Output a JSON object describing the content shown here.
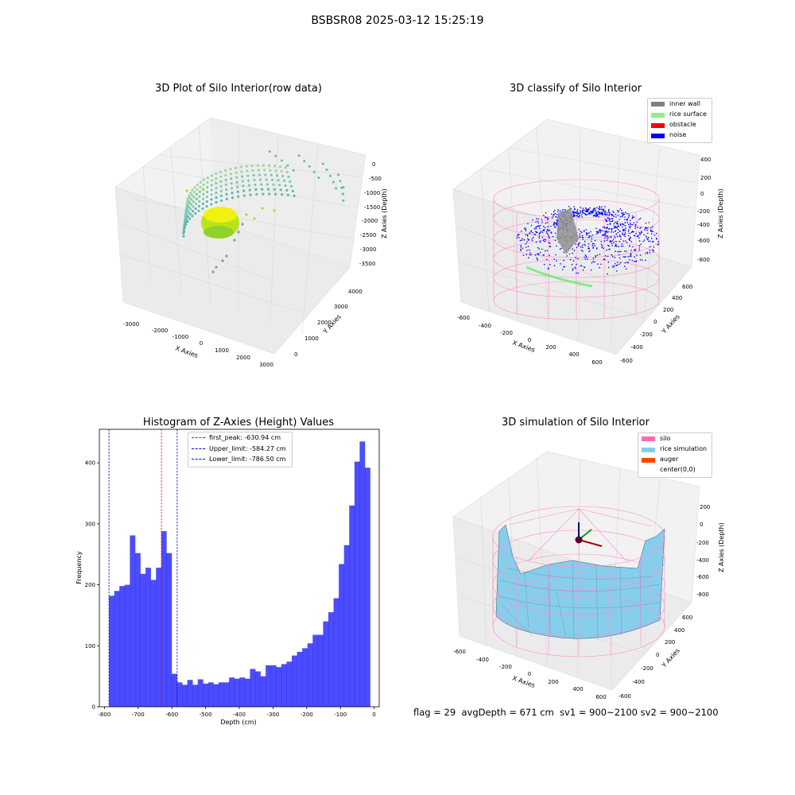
{
  "figure_title": "BSBSR08 2025-03-12 15:25:19",
  "panels": {
    "raw": {
      "title": "3D Plot of Silo Interior(row data)",
      "xlabel": "X Axies",
      "ylabel": "Y Axies",
      "zlabel": "Z Axies (Depth)",
      "xticks": [
        "-3000",
        "-2000",
        "-1000",
        "0",
        "1000",
        "2000",
        "3000"
      ],
      "yticks": [
        "0",
        "1000",
        "2000",
        "3000",
        "4000"
      ],
      "zticks": [
        "0",
        "-500",
        "-1000",
        "-1500",
        "-2000",
        "-2500",
        "-3000",
        "-3500"
      ]
    },
    "classify": {
      "title": "3D classify of Silo Interior",
      "xlabel": "X Axies",
      "ylabel": "Y Axies",
      "zlabel": "Z Axies (Depth)",
      "xticks": [
        "-600",
        "-400",
        "-200",
        "0",
        "200",
        "400",
        "600"
      ],
      "yticks": [
        "-600",
        "-400",
        "-200",
        "0",
        "200",
        "400",
        "600"
      ],
      "zticks": [
        "400",
        "200",
        "0",
        "-200",
        "-400",
        "-600",
        "-800"
      ],
      "legend": [
        {
          "label": "inner wall",
          "color": "#808080"
        },
        {
          "label": "rice surface",
          "color": "#90ee90"
        },
        {
          "label": "obstacle",
          "color": "#ff0000"
        },
        {
          "label": "noise",
          "color": "#0000ff"
        }
      ]
    },
    "simulation": {
      "title": "3D simulation of Silo Interior",
      "xlabel": "X Axies",
      "ylabel": "Y Axies",
      "zlabel": "Z Axies (Depth)",
      "xticks": [
        "-600",
        "-400",
        "-200",
        "0",
        "200",
        "400",
        "600"
      ],
      "yticks": [
        "-600",
        "-400",
        "-200",
        "0",
        "200",
        "400",
        "600"
      ],
      "zticks": [
        "200",
        "0",
        "-200",
        "-400",
        "-600",
        "-800"
      ],
      "legend": [
        {
          "label": "silo",
          "color": "#ff69b4"
        },
        {
          "label": "rice simulation",
          "color": "#87ceeb"
        },
        {
          "label": "auger",
          "color": "#ff4500"
        },
        {
          "label": "center(0,0)",
          "color": ""
        }
      ]
    }
  },
  "chart_data": {
    "type": "bar",
    "title": "Histogram of Z-Axies (Height) Values",
    "xlabel": "Depth (cm)",
    "ylabel": "Frequency",
    "xlim": [
      -815,
      15
    ],
    "ylim": [
      0,
      455
    ],
    "xticks": [
      -800,
      -700,
      -600,
      -500,
      -400,
      -300,
      -200,
      -100,
      0
    ],
    "yticks": [
      0,
      100,
      200,
      300,
      400
    ],
    "bin_range": [
      -786.5,
      -12
    ],
    "bin_color": "#0000ff",
    "values": [
      182,
      190,
      198,
      200,
      281,
      252,
      218,
      228,
      208,
      228,
      288,
      252,
      54,
      40,
      36,
      44,
      36,
      45,
      38,
      40,
      37,
      40,
      40,
      48,
      46,
      48,
      46,
      62,
      58,
      50,
      68,
      68,
      65,
      70,
      74,
      84,
      90,
      96,
      104,
      118,
      118,
      140,
      155,
      178,
      234,
      265,
      330,
      402,
      435,
      392
    ],
    "lines": [
      {
        "label": "first_peak: -630.94 cm",
        "value": -630.94,
        "color": "#ff0000"
      },
      {
        "label": "Upper_limit: -584.27 cm",
        "value": -584.27,
        "color": "#0000ff"
      },
      {
        "label": "Lower_limit: -786.50 cm",
        "value": -786.5,
        "color": "#0000ff"
      }
    ],
    "legend_position": "top-center"
  },
  "footer": {
    "flag": "flag = 29",
    "avg": "avgDepth = 671 cm",
    "sv1": "sv1 = 900~2100",
    "sv2": "sv2 = 900~2100"
  }
}
